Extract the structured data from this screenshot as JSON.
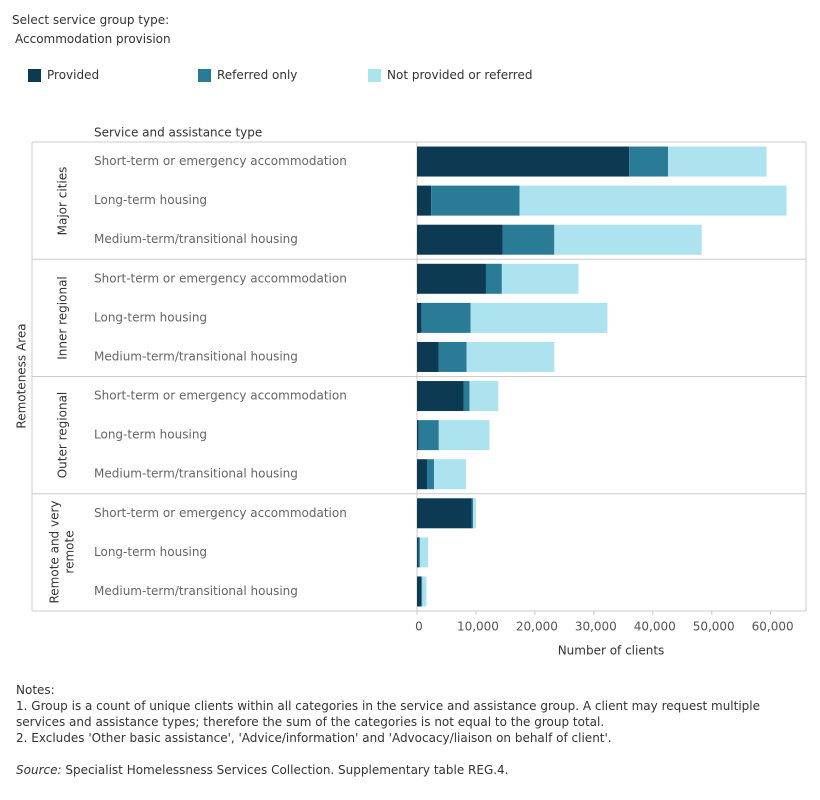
{
  "selector": {
    "label": "Select service group type:",
    "value": "Accommodation provision"
  },
  "chart_data": {
    "type": "bar",
    "orientation": "horizontal",
    "stacked": true,
    "header": "Service and assistance type",
    "y_axis_label": "Remoteness Area",
    "x_axis_label": "Number of clients",
    "groups": [
      "Major cities",
      "Inner regional",
      "Outer regional",
      "Remote and very remote"
    ],
    "categories": [
      "Short-term or emergency accommodation",
      "Long-term housing",
      "Medium-term/transitional housing",
      "Short-term or emergency accommodation",
      "Long-term housing",
      "Medium-term/transitional housing",
      "Short-term or emergency accommodation",
      "Long-term housing",
      "Medium-term/transitional housing",
      "Short-term or emergency accommodation",
      "Long-term housing",
      "Medium-term/transitional housing"
    ],
    "series": [
      {
        "name": "Provided",
        "color": "#0b3a52",
        "values": [
          36000,
          2400,
          14500,
          11700,
          800,
          3700,
          7900,
          300,
          1700,
          9300,
          300,
          700
        ]
      },
      {
        "name": "Referred only",
        "color": "#2a7b95",
        "values": [
          6600,
          15000,
          8800,
          2700,
          8300,
          4700,
          1000,
          3400,
          1200,
          200,
          200,
          200
        ]
      },
      {
        "name": "Not provided or referred",
        "color": "#ade3ee",
        "values": [
          16700,
          45300,
          25000,
          13000,
          23200,
          14900,
          4900,
          8600,
          5400,
          500,
          1400,
          700
        ]
      }
    ],
    "xlim": [
      0,
      66000
    ],
    "xticks": [
      0,
      {
        "value": 10000,
        "label": "10,000"
      },
      {
        "value": 20000,
        "label": "20,000"
      },
      {
        "value": 30000,
        "label": "30,000"
      },
      {
        "value": 40000,
        "label": "40,000"
      },
      {
        "value": 50000,
        "label": "50,000"
      },
      {
        "value": 60000,
        "label": "60,000"
      }
    ]
  },
  "notes": {
    "heading": "Notes:",
    "items": [
      "1. Group is a count of unique clients within all categories in the service and assistance group. A client may request multiple services and assistance types; therefore the sum of the categories is not equal to the group total.",
      "2. Excludes 'Other basic assistance', 'Advice/information' and 'Advocacy/liaison on behalf of client'."
    ],
    "source_label": "Source:",
    "source_text": " Specialist Homelessness Services Collection. Supplementary table REG.4."
  }
}
